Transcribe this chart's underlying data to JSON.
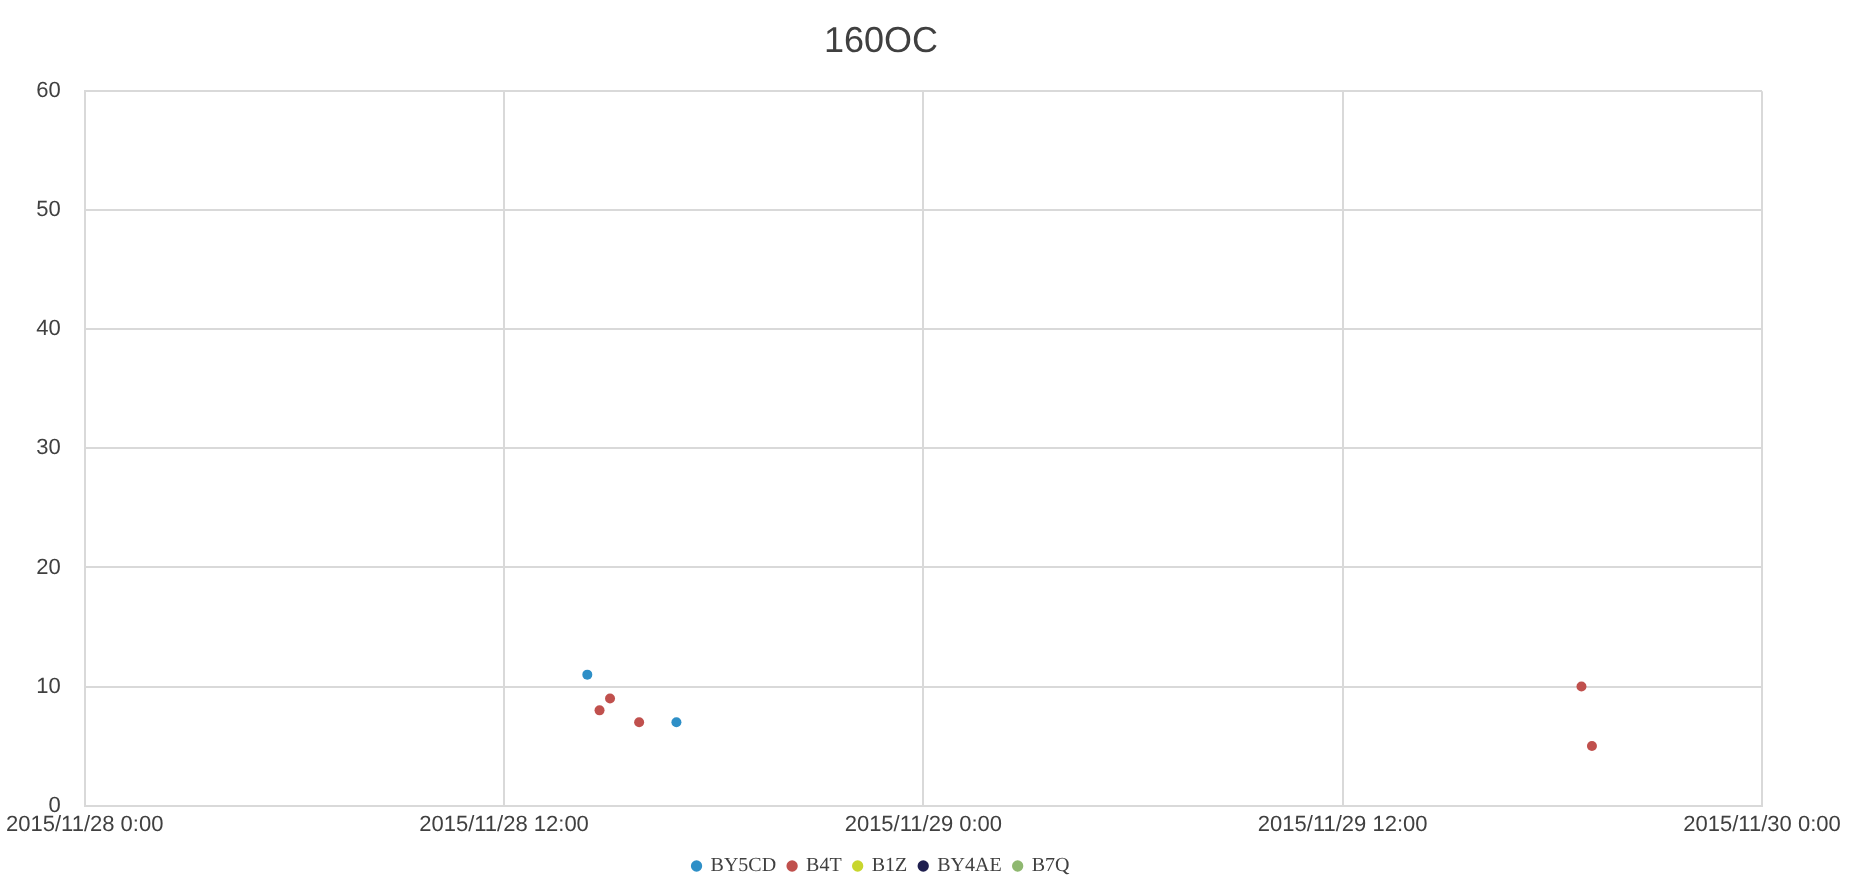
{
  "chart_data": {
    "type": "scatter",
    "title": "160OC",
    "series": [
      {
        "name": "BY5CD",
        "color": "#2e8fc7",
        "x": [
          "2015-11-28T14:23",
          "2015-11-28T16:56"
        ],
        "values": [
          11,
          7
        ]
      },
      {
        "name": "B4T",
        "color": "#c0504d",
        "x": [
          "2015-11-28T14:44",
          "2015-11-28T15:02",
          "2015-11-28T15:52",
          "2015-11-29T18:50",
          "2015-11-29T19:08"
        ],
        "values": [
          8,
          9,
          7,
          10,
          5
        ]
      },
      {
        "name": "B1Z",
        "color": "#c8d62e"
      },
      {
        "name": "BY4AE",
        "color": "#1f1f4f"
      },
      {
        "name": "B7Q",
        "color": "#8fb870"
      }
    ],
    "xlim": [
      "2015-11-28T00:00",
      "2015-11-30T00:00"
    ],
    "xticks": [
      {
        "value": "2015-11-28T00:00",
        "label": "2015/11/28 0:00"
      },
      {
        "value": "2015-11-28T12:00",
        "label": "2015/11/28 12:00"
      },
      {
        "value": "2015-11-29T00:00",
        "label": "2015/11/29 0:00"
      },
      {
        "value": "2015-11-29T12:00",
        "label": "2015/11/29 12:00"
      },
      {
        "value": "2015-11-30T00:00",
        "label": "2015/11/30 0:00"
      }
    ],
    "ylim": [
      0,
      60
    ],
    "yticks": [
      0,
      10,
      20,
      30,
      40,
      50,
      60
    ],
    "grid": true,
    "legend": "bottom",
    "marker": "circle"
  }
}
